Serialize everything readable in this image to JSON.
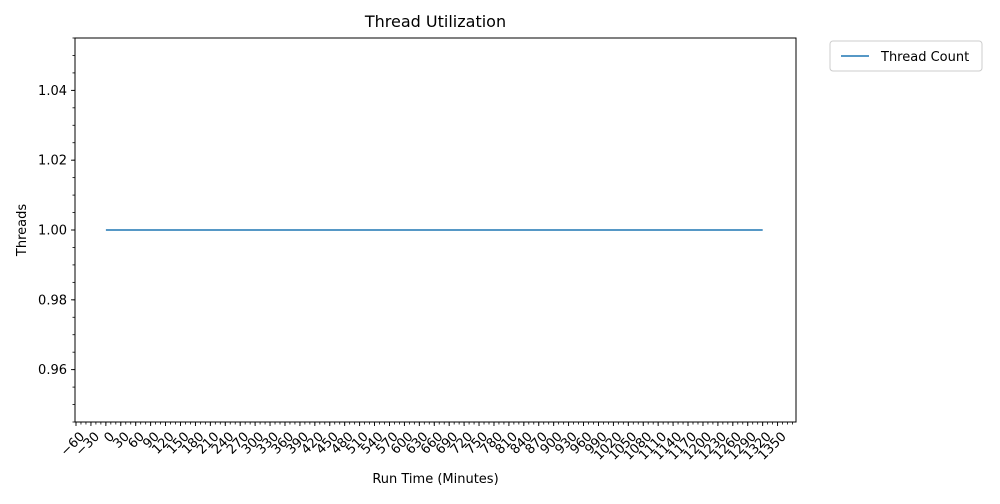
{
  "chart_data": {
    "type": "line",
    "title": "Thread Utilization",
    "xlabel": "Run Time (Minutes)",
    "ylabel": "Threads",
    "xlim": [
      -62,
      1387
    ],
    "ylim": [
      0.945,
      1.055
    ],
    "x_ticks": [
      -60,
      -30,
      0,
      30,
      60,
      90,
      120,
      150,
      180,
      210,
      240,
      270,
      300,
      330,
      360,
      390,
      420,
      450,
      480,
      510,
      540,
      570,
      600,
      630,
      660,
      690,
      720,
      750,
      780,
      810,
      840,
      870,
      900,
      930,
      960,
      990,
      1020,
      1050,
      1080,
      1110,
      1140,
      1170,
      1200,
      1230,
      1260,
      1290,
      1320,
      1350
    ],
    "x_tick_labels": [
      "−60",
      "−30",
      "0",
      "30",
      "60",
      "90",
      "120",
      "150",
      "180",
      "210",
      "240",
      "270",
      "300",
      "330",
      "360",
      "390",
      "420",
      "450",
      "480",
      "510",
      "540",
      "570",
      "600",
      "630",
      "660",
      "690",
      "720",
      "750",
      "780",
      "810",
      "840",
      "870",
      "900",
      "930",
      "960",
      "990",
      "1020",
      "1050",
      "1080",
      "1110",
      "1140",
      "1170",
      "1200",
      "1230",
      "1260",
      "1290",
      "1320",
      "1350"
    ],
    "y_ticks": [
      0.96,
      0.98,
      1.0,
      1.02,
      1.04
    ],
    "y_tick_labels": [
      "0.96",
      "0.98",
      "1.00",
      "1.02",
      "1.04"
    ],
    "x_minor_tick_step": 10,
    "y_minor_tick_step": 0.005,
    "grid": false,
    "legend_position": "outside top-right",
    "series": [
      {
        "name": "Thread Count",
        "color": "#1f77b4",
        "x": [
          0,
          1320
        ],
        "values": [
          1.0,
          1.0
        ]
      }
    ]
  }
}
